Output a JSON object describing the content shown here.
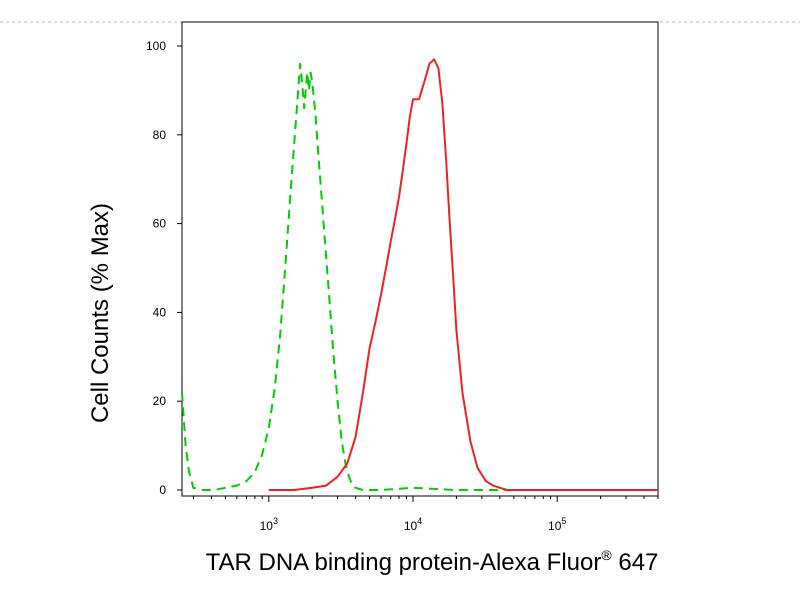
{
  "chart_data": {
    "type": "line",
    "title": "",
    "xlabel": "TAR DNA binding protein-Alexa Fluor",
    "xlabel_superscript": "®",
    "xlabel_suffix": " 647",
    "ylabel": "Cell Counts (% Max)",
    "x_scale": "log",
    "xlim": [
      250,
      500000
    ],
    "ylim": [
      0,
      100
    ],
    "y_ticks": [
      0,
      20,
      40,
      60,
      80,
      100
    ],
    "x_tick_labels": [
      {
        "base": "10",
        "exp": "3",
        "value": 1000
      },
      {
        "base": "10",
        "exp": "4",
        "value": 10000
      },
      {
        "base": "10",
        "exp": "5",
        "value": 100000
      }
    ],
    "grid": false,
    "series": [
      {
        "color": "#00cc00",
        "style": "dashed",
        "x": [
          250,
          265,
          280,
          300,
          350,
          420,
          500,
          600,
          700,
          800,
          900,
          1000,
          1100,
          1200,
          1300,
          1400,
          1500,
          1580,
          1650,
          1700,
          1760,
          1800,
          1850,
          1900,
          1950,
          2000,
          2100,
          2200,
          2400,
          2600,
          2800,
          3000,
          3200,
          3400,
          3600,
          3800,
          4000,
          4500,
          5000,
          6000,
          10000,
          20000,
          50000,
          100000,
          500000
        ],
        "y": [
          22,
          10,
          4,
          0.5,
          0,
          0,
          0.5,
          1,
          2,
          4,
          8,
          14,
          23,
          35,
          50,
          65,
          78,
          88,
          96,
          92,
          86,
          90,
          94,
          90,
          94,
          92,
          85,
          76,
          60,
          45,
          31,
          20,
          11,
          6,
          3,
          1,
          0.5,
          0,
          0,
          0,
          0.5,
          0,
          0,
          0,
          0
        ]
      },
      {
        "color": "#ee2222",
        "style": "solid",
        "x": [
          1000,
          1500,
          2000,
          2500,
          3000,
          3500,
          4000,
          4500,
          5000,
          5500,
          6000,
          6500,
          7000,
          7500,
          8000,
          8500,
          9000,
          9500,
          10000,
          11000,
          12000,
          13000,
          14000,
          15000,
          16000,
          17000,
          18000,
          19000,
          20000,
          22000,
          25000,
          28000,
          32000,
          36000,
          40000,
          45000,
          50000,
          100000,
          500000
        ],
        "y": [
          0,
          0,
          0.5,
          1,
          3,
          6,
          12,
          22,
          32,
          38,
          44,
          50,
          56,
          61,
          66,
          72,
          78,
          84,
          88,
          88,
          92,
          96,
          97,
          95,
          87,
          74,
          60,
          48,
          36,
          22,
          11,
          5,
          2,
          1,
          0.5,
          0,
          0,
          0,
          0
        ]
      }
    ]
  }
}
